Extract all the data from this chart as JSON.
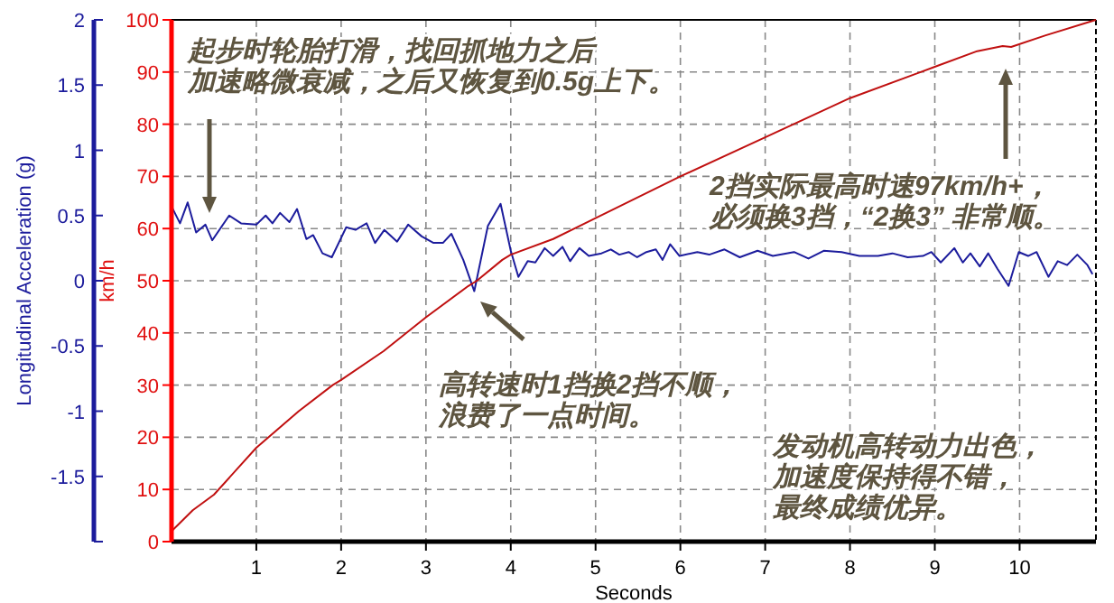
{
  "chart_data": {
    "type": "line",
    "xlabel": "Seconds",
    "ylabel": "Longitudinal Acceleration (g)",
    "y2label": "km/h",
    "xlim": [
      0,
      10.9
    ],
    "xticks": [
      1,
      2,
      3,
      4,
      5,
      6,
      7,
      8,
      9,
      10
    ],
    "ylim": [
      -2,
      2
    ],
    "yticks": [
      {
        "value": -2,
        "label": null
      },
      -1.5,
      -1,
      -0.5,
      0,
      0.5,
      1,
      1.5,
      2
    ],
    "y2lim": [
      0,
      100
    ],
    "y2ticks": [
      0,
      10,
      20,
      30,
      40,
      50,
      60,
      70,
      80,
      90,
      100
    ],
    "grid": true,
    "marker": "none",
    "line_style": "solid",
    "series": [
      {
        "color": "#1c1c9c",
        "x": [
          0,
          0.1,
          0.19,
          0.29,
          0.4,
          0.48,
          0.68,
          0.82,
          1.0,
          1.11,
          1.19,
          1.28,
          1.39,
          1.48,
          1.59,
          1.67,
          1.78,
          1.89,
          2.06,
          2.17,
          2.3,
          2.4,
          2.51,
          2.66,
          2.79,
          2.95,
          3.09,
          3.2,
          3.3,
          3.44,
          3.57,
          3.73,
          3.88,
          4.0,
          4.09,
          4.2,
          4.29,
          4.4,
          4.5,
          4.61,
          4.7,
          4.81,
          4.92,
          5.07,
          5.18,
          5.28,
          5.39,
          5.49,
          5.6,
          5.71,
          5.79,
          5.88,
          5.99,
          6.2,
          6.34,
          6.52,
          6.7,
          6.91,
          7.09,
          7.34,
          7.51,
          7.69,
          7.9,
          8.11,
          8.33,
          8.5,
          8.68,
          8.86,
          8.96,
          9.07,
          9.23,
          9.33,
          9.42,
          9.53,
          9.63,
          9.74,
          9.87,
          9.99,
          10.1,
          10.2,
          10.34,
          10.45,
          10.56,
          10.68,
          10.8,
          10.86
        ],
        "values": [
          0.57,
          0.44,
          0.6,
          0.37,
          0.43,
          0.31,
          0.5,
          0.44,
          0.43,
          0.5,
          0.44,
          0.52,
          0.45,
          0.55,
          0.32,
          0.35,
          0.21,
          0.18,
          0.41,
          0.39,
          0.44,
          0.29,
          0.39,
          0.3,
          0.43,
          0.34,
          0.29,
          0.29,
          0.36,
          0.16,
          -0.08,
          0.42,
          0.59,
          0.23,
          0.03,
          0.15,
          0.14,
          0.25,
          0.19,
          0.26,
          0.15,
          0.25,
          0.19,
          0.21,
          0.24,
          0.2,
          0.22,
          0.18,
          0.22,
          0.24,
          0.16,
          0.28,
          0.19,
          0.22,
          0.2,
          0.24,
          0.18,
          0.23,
          0.19,
          0.22,
          0.17,
          0.23,
          0.22,
          0.19,
          0.19,
          0.21,
          0.18,
          0.19,
          0.22,
          0.14,
          0.25,
          0.14,
          0.21,
          0.11,
          0.21,
          0.09,
          -0.04,
          0.22,
          0.19,
          0.22,
          0.03,
          0.15,
          0.12,
          0.2,
          0.12,
          0.05
        ]
      },
      {
        "color": "#c01010",
        "axis": "y2",
        "x": [
          0,
          0.25,
          0.5,
          1,
          1.5,
          1.9,
          2,
          2.5,
          3,
          3.5,
          3.6,
          3.9,
          4,
          4.5,
          5,
          6,
          7,
          8,
          9,
          9.5,
          9.8,
          9.9,
          10.3,
          10.9
        ],
        "values": [
          2,
          6,
          9,
          18,
          25,
          30,
          31,
          36.5,
          43,
          49,
          50,
          54,
          55,
          58,
          62,
          70,
          77.5,
          85,
          91,
          94,
          95,
          94.8,
          97,
          100
        ]
      }
    ],
    "annotations": [
      "起步时轮胎打滑，找回抓地力之后加速略微衰减，之后又恢复到0.5g上下。",
      "高转速时1挡换2挡不顺，浪费了一点时间。",
      "2挡实际最高时速97km/h+，必须换3挡，“2换3” 非常顺。",
      "发动机高转动力出色，加速度保持得不错，最终成绩优异。"
    ]
  }
}
